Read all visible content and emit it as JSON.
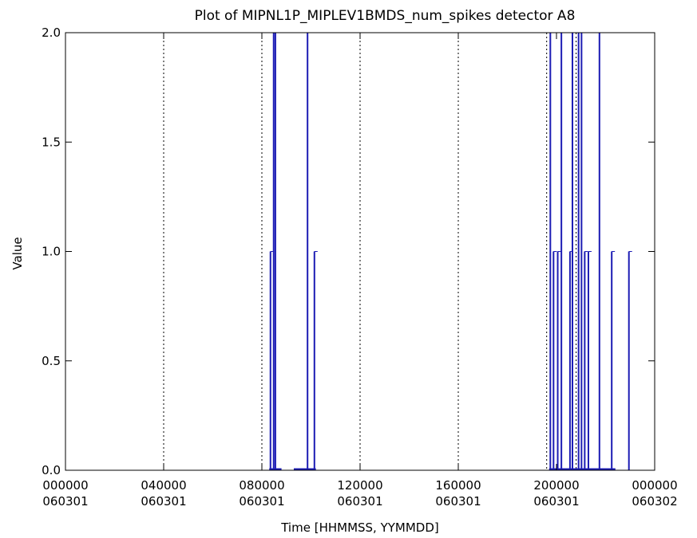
{
  "chart_data": {
    "type": "line",
    "title": "Plot of MIPNL1P_MIPLEV1BMDS_num_spikes detector A8",
    "xlabel": "Time [HHMMSS, YYMMDD]",
    "ylabel": "Value",
    "xlim_hours": [
      0,
      24
    ],
    "ylim": [
      0,
      2.0
    ],
    "yticks": [
      {
        "v": 0.0,
        "label": "0.0"
      },
      {
        "v": 0.5,
        "label": "0.5"
      },
      {
        "v": 1.0,
        "label": "1.0"
      },
      {
        "v": 1.5,
        "label": "1.5"
      },
      {
        "v": 2.0,
        "label": "2.0"
      }
    ],
    "xticks": [
      {
        "h": 0,
        "time": "000000",
        "date": "060301"
      },
      {
        "h": 4,
        "time": "040000",
        "date": "060301"
      },
      {
        "h": 8,
        "time": "080000",
        "date": "060301"
      },
      {
        "h": 12,
        "time": "120000",
        "date": "060301"
      },
      {
        "h": 16,
        "time": "160000",
        "date": "060301"
      },
      {
        "h": 20,
        "time": "200000",
        "date": "060301"
      },
      {
        "h": 24,
        "time": "000000",
        "date": "060302"
      }
    ],
    "vertical_markers_hours": [
      4.0,
      8.0,
      12.0,
      16.0,
      19.6,
      20.8
    ],
    "baseline_segments_hours": [
      [
        8.3,
        8.8
      ],
      [
        9.3,
        10.2
      ],
      [
        19.7,
        22.4
      ]
    ],
    "spikes": [
      {
        "h": 8.35,
        "v": 1.0
      },
      {
        "h": 8.48,
        "v": 2.0
      },
      {
        "h": 8.55,
        "v": 2.0
      },
      {
        "h": 9.86,
        "v": 2.0
      },
      {
        "h": 10.14,
        "v": 1.0
      },
      {
        "h": 19.75,
        "v": 2.0
      },
      {
        "h": 19.88,
        "v": 1.0
      },
      {
        "h": 20.05,
        "v": 1.0
      },
      {
        "h": 20.2,
        "v": 2.0
      },
      {
        "h": 20.55,
        "v": 1.0
      },
      {
        "h": 20.65,
        "v": 2.0
      },
      {
        "h": 20.9,
        "v": 2.0
      },
      {
        "h": 21.02,
        "v": 2.0
      },
      {
        "h": 21.15,
        "v": 1.0
      },
      {
        "h": 21.3,
        "v": 1.0
      },
      {
        "h": 21.75,
        "v": 2.0
      },
      {
        "h": 22.25,
        "v": 1.0
      },
      {
        "h": 22.95,
        "v": 1.0
      }
    ],
    "grid": false,
    "colors": {
      "series": "#1c1cb4",
      "axes": "#000000",
      "markers": "#000000"
    }
  }
}
